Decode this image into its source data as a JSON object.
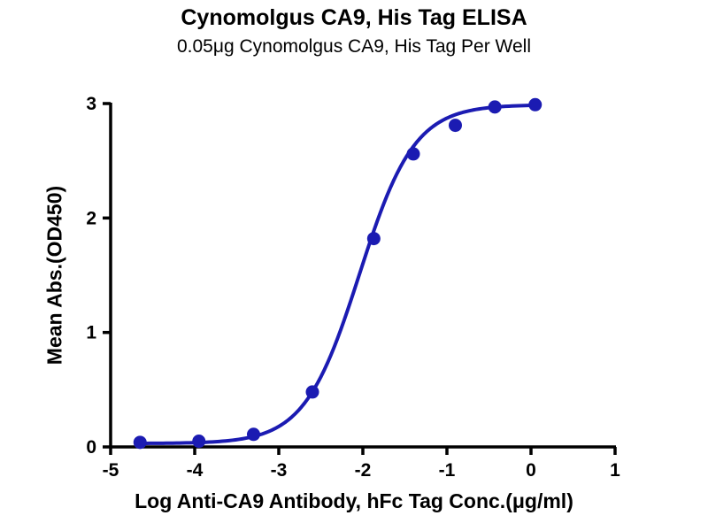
{
  "chart_data": {
    "type": "scatter",
    "title": "Cynomolgus CA9, His Tag ELISA",
    "subtitle": "0.05μg Cynomolgus CA9, His Tag Per Well",
    "xlabel": "Log Anti-CA9 Antibody, hFc Tag Conc.(μg/ml)",
    "ylabel": "Mean Abs.(OD450)",
    "xlim": [
      -5,
      1
    ],
    "ylim": [
      0,
      3
    ],
    "x_ticks": [
      -5,
      -4,
      -3,
      -2,
      -1,
      0,
      1
    ],
    "y_ticks": [
      0,
      1,
      2,
      3
    ],
    "grid": false,
    "legend": "none",
    "series": [
      {
        "name": "Anti-CA9 Antibody, hFc Tag",
        "marker": "circle",
        "color": "#1b1bb2",
        "x": [
          -4.65,
          -3.95,
          -3.3,
          -2.6,
          -1.87,
          -1.4,
          -0.9,
          -0.43,
          0.05
        ],
        "y": [
          0.04,
          0.05,
          0.11,
          0.48,
          1.82,
          2.56,
          2.81,
          2.97,
          2.99
        ]
      }
    ],
    "fit": {
      "model": "4PL",
      "bottom": 0.03,
      "top": 2.99,
      "log_ec50": -2.04,
      "hill": 1.33
    },
    "colors": {
      "curve": "#1b1bb2",
      "points": "#1b1bb2",
      "axis": "#000000",
      "background": "#ffffff"
    }
  }
}
